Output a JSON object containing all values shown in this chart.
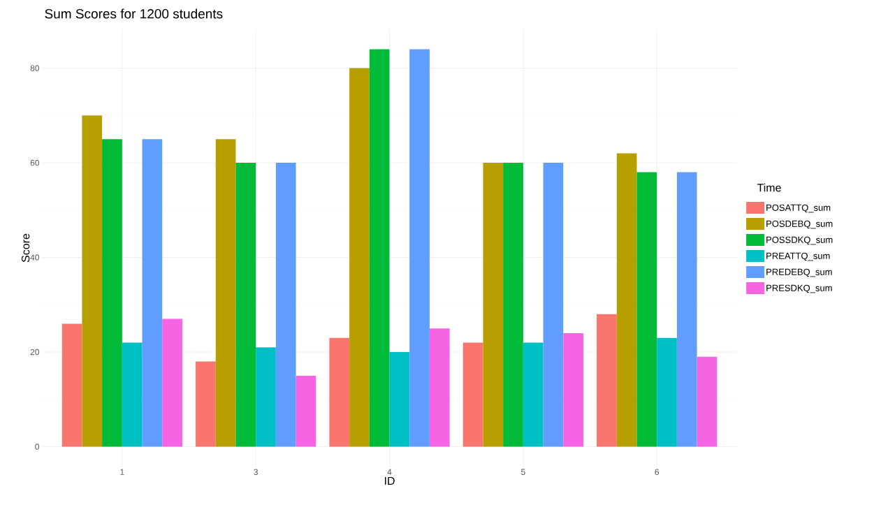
{
  "chart_data": {
    "type": "bar",
    "title": "Sum Scores for 1200 students",
    "xlabel": "ID",
    "ylabel": "Score",
    "legend_title": "Time",
    "categories": [
      "1",
      "3",
      "4",
      "5",
      "6"
    ],
    "series": [
      {
        "name": "POSATTQ_sum",
        "color": "#f8766d",
        "values": [
          26,
          18,
          23,
          22,
          28
        ]
      },
      {
        "name": "POSDEBQ_sum",
        "color": "#b79f00",
        "values": [
          70,
          65,
          80,
          60,
          62
        ]
      },
      {
        "name": "POSSDKQ_sum",
        "color": "#00ba38",
        "values": [
          65,
          60,
          84,
          60,
          58
        ]
      },
      {
        "name": "PREATTQ_sum",
        "color": "#00bfc4",
        "values": [
          22,
          21,
          20,
          22,
          23
        ]
      },
      {
        "name": "PREDEBQ_sum",
        "color": "#619cff",
        "values": [
          65,
          60,
          84,
          60,
          58
        ]
      },
      {
        "name": "PRESDKQ_sum",
        "color": "#f564e3",
        "values": [
          27,
          15,
          25,
          24,
          19
        ]
      }
    ],
    "ylim": [
      -4.2,
      88.2
    ],
    "yticks": [
      0,
      20,
      40,
      60,
      80
    ],
    "grid": true,
    "legend": "right"
  }
}
